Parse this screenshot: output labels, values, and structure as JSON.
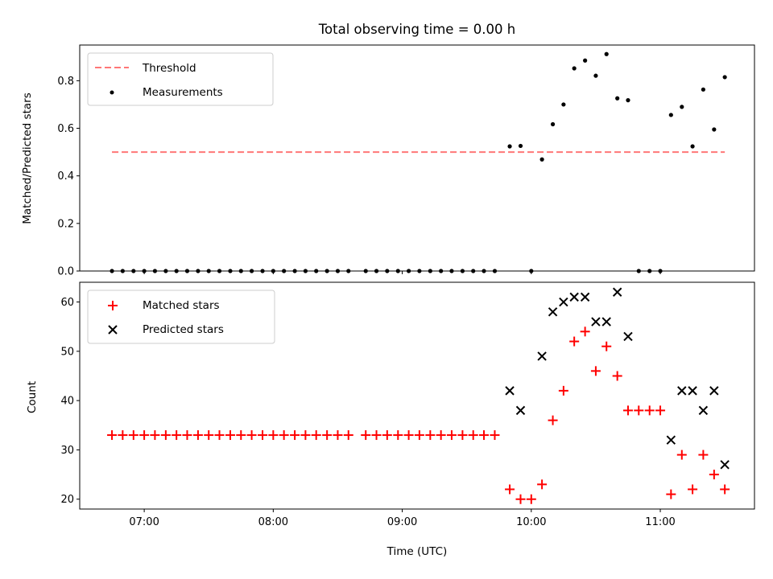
{
  "figure": {
    "title": "Total observing time = 0.00 h",
    "xlabel": "Time (UTC)",
    "x_tick_labels": [
      "07:00",
      "08:00",
      "09:00",
      "10:00",
      "11:00"
    ]
  },
  "chart_data": [
    {
      "type": "scatter",
      "title": "Total observing time = 0.00 h",
      "xlabel": "",
      "ylabel": "Matched/Predicted stars",
      "x_unit": "hours (UTC)",
      "xlim": [
        6.5,
        11.73
      ],
      "ylim": [
        0,
        0.95
      ],
      "yticks": [
        0.0,
        0.2,
        0.4,
        0.6,
        0.8
      ],
      "ytick_labels": [
        "0.0",
        "0.2",
        "0.4",
        "0.6",
        "0.8"
      ],
      "xticks": [
        7,
        8,
        9,
        10,
        11
      ],
      "legend": {
        "position": "upper left",
        "entries": [
          "Threshold",
          "Measurements"
        ]
      },
      "threshold": {
        "name": "Threshold",
        "y": 0.5,
        "x_range": [
          6.75,
          11.5
        ],
        "color": "#ff7777",
        "style": "dashed"
      },
      "series": [
        {
          "name": "Measurements",
          "marker": "dot",
          "color": "#000000",
          "x": [
            6.75,
            6.833,
            6.917,
            7.0,
            7.083,
            7.167,
            7.25,
            7.333,
            7.417,
            7.5,
            7.583,
            7.667,
            7.75,
            7.833,
            7.917,
            8.0,
            8.083,
            8.167,
            8.25,
            8.333,
            8.417,
            8.5,
            8.583,
            8.717,
            8.8,
            8.883,
            8.967,
            9.05,
            9.133,
            9.217,
            9.3,
            9.383,
            9.467,
            9.55,
            9.633,
            9.717,
            9.833,
            9.917,
            10.0,
            10.083,
            10.167,
            10.25,
            10.333,
            10.417,
            10.5,
            10.583,
            10.667,
            10.75,
            10.833,
            10.917,
            11.0,
            11.083,
            11.167,
            11.25,
            11.333,
            11.417,
            11.5
          ],
          "y": [
            0,
            0,
            0,
            0,
            0,
            0,
            0,
            0,
            0,
            0,
            0,
            0,
            0,
            0,
            0,
            0,
            0,
            0,
            0,
            0,
            0,
            0,
            0,
            0,
            0,
            0,
            0,
            0,
            0,
            0,
            0,
            0,
            0,
            0,
            0,
            0,
            0.524,
            0.526,
            0,
            0.469,
            0.617,
            0.7,
            0.852,
            0.885,
            0.821,
            0.912,
            0.726,
            0.718,
            0,
            0,
            0,
            0.656,
            0.69,
            0.524,
            0.763,
            0.595,
            0.815
          ]
        }
      ]
    },
    {
      "type": "scatter",
      "title": "",
      "xlabel": "Time (UTC)",
      "ylabel": "Count",
      "x_unit": "hours (UTC)",
      "xlim": [
        6.5,
        11.73
      ],
      "ylim": [
        18,
        64
      ],
      "yticks": [
        20,
        30,
        40,
        50,
        60
      ],
      "ytick_labels": [
        "20",
        "30",
        "40",
        "50",
        "60"
      ],
      "xticks": [
        7,
        8,
        9,
        10,
        11
      ],
      "xtick_labels": [
        "07:00",
        "08:00",
        "09:00",
        "10:00",
        "11:00"
      ],
      "legend": {
        "position": "upper left",
        "entries": [
          "Matched stars",
          "Predicted stars"
        ]
      },
      "series": [
        {
          "name": "Matched stars",
          "marker": "plus",
          "color": "#ff0000",
          "x": [
            6.75,
            6.833,
            6.917,
            7.0,
            7.083,
            7.167,
            7.25,
            7.333,
            7.417,
            7.5,
            7.583,
            7.667,
            7.75,
            7.833,
            7.917,
            8.0,
            8.083,
            8.167,
            8.25,
            8.333,
            8.417,
            8.5,
            8.583,
            8.717,
            8.8,
            8.883,
            8.967,
            9.05,
            9.133,
            9.217,
            9.3,
            9.383,
            9.467,
            9.55,
            9.633,
            9.717,
            9.833,
            9.917,
            10.0,
            10.083,
            10.167,
            10.25,
            10.333,
            10.417,
            10.5,
            10.583,
            10.667,
            10.75,
            10.833,
            10.917,
            11.0,
            11.083,
            11.167,
            11.25,
            11.333,
            11.417,
            11.5
          ],
          "y": [
            33,
            33,
            33,
            33,
            33,
            33,
            33,
            33,
            33,
            33,
            33,
            33,
            33,
            33,
            33,
            33,
            33,
            33,
            33,
            33,
            33,
            33,
            33,
            33,
            33,
            33,
            33,
            33,
            33,
            33,
            33,
            33,
            33,
            33,
            33,
            33,
            22,
            20,
            20,
            23,
            36,
            42,
            52,
            54,
            46,
            51,
            45,
            38,
            38,
            38,
            38,
            21,
            29,
            22,
            29,
            25,
            22
          ]
        },
        {
          "name": "Predicted stars",
          "marker": "x",
          "color": "#000000",
          "x": [
            9.833,
            9.917,
            10.083,
            10.167,
            10.25,
            10.333,
            10.417,
            10.5,
            10.583,
            10.667,
            10.75,
            11.083,
            11.167,
            11.25,
            11.333,
            11.417,
            11.5
          ],
          "y": [
            42,
            38,
            49,
            58,
            60,
            61,
            61,
            56,
            56,
            62,
            53,
            32,
            42,
            42,
            38,
            42,
            27
          ]
        }
      ]
    }
  ]
}
